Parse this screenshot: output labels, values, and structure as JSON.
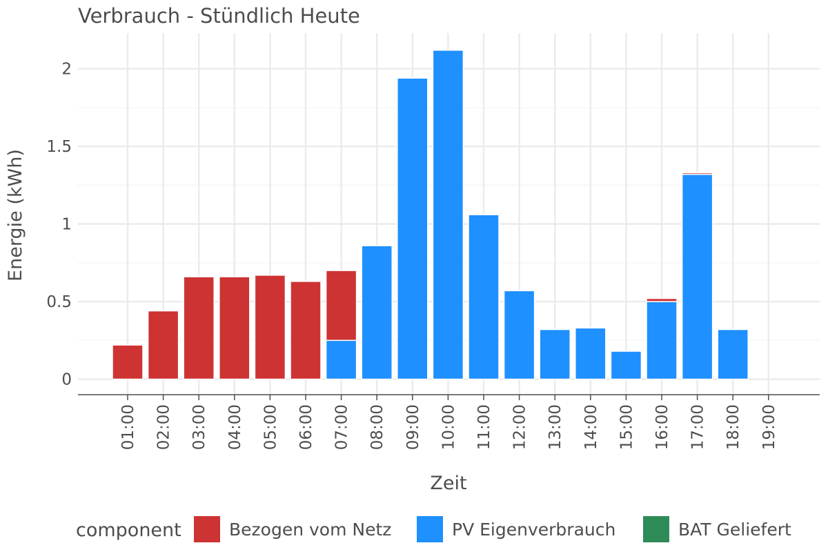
{
  "chart_data": {
    "type": "bar",
    "stacked": true,
    "title": "Verbrauch - Stündlich Heute",
    "xlabel": "Zeit",
    "ylabel": "Energie (kWh)",
    "ylim": [
      -0.1,
      2.23
    ],
    "yticks": [
      0,
      0.5,
      1,
      1.5,
      2
    ],
    "ytick_labels": [
      "0",
      "0.5",
      "1",
      "1.5",
      "2"
    ],
    "categories": [
      "01:00",
      "02:00",
      "03:00",
      "04:00",
      "05:00",
      "06:00",
      "07:00",
      "08:00",
      "09:00",
      "10:00",
      "11:00",
      "12:00",
      "13:00",
      "14:00",
      "15:00",
      "16:00",
      "17:00",
      "18:00",
      "19:00"
    ],
    "series": [
      {
        "name": "PV Eigenverbrauch",
        "color": "#1E90FF",
        "values": [
          0,
          0,
          0,
          0,
          0,
          0,
          0.25,
          0.86,
          1.94,
          2.12,
          1.06,
          0.57,
          0.32,
          0.33,
          0.18,
          0.5,
          1.32,
          0.32,
          0
        ]
      },
      {
        "name": "Bezogen vom Netz",
        "color": "#CD3333",
        "values": [
          0.22,
          0.44,
          0.66,
          0.66,
          0.67,
          0.63,
          0.45,
          0,
          0,
          0,
          0,
          0,
          0,
          0,
          0,
          0.02,
          0.01,
          0,
          0
        ]
      },
      {
        "name": "BAT Geliefert",
        "color": "#2E8B57",
        "values": [
          0,
          0,
          0,
          0,
          0,
          0,
          0,
          0,
          0,
          0,
          0,
          0,
          0,
          0,
          0,
          0,
          0,
          0,
          0
        ]
      }
    ],
    "legend": {
      "title": "component",
      "placement": "bottom",
      "entries": [
        {
          "label": "Bezogen vom Netz",
          "color": "#CD3333"
        },
        {
          "label": "PV Eigenverbrauch",
          "color": "#1E90FF"
        },
        {
          "label": "BAT Geliefert",
          "color": "#2E8B57"
        }
      ]
    },
    "grid": true
  }
}
